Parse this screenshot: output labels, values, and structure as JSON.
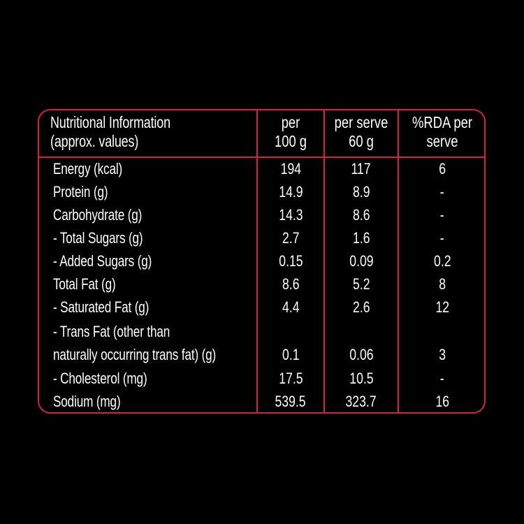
{
  "colors": {
    "background": "#000000",
    "border": "#d81b50",
    "text": "#ffffff"
  },
  "header": {
    "col1_line1": "Nutritional Information",
    "col1_line2": "(approx. values)",
    "col2_line1": "per",
    "col2_line2": "100 g",
    "col3_line1": "per serve",
    "col3_line2": "60 g",
    "col4_line1": "%RDA per",
    "col4_line2": "serve"
  },
  "rows": [
    {
      "label": "Energy (kcal)",
      "per100": "194",
      "perServe": "117",
      "rda": "6"
    },
    {
      "label": "Protein (g)",
      "per100": "14.9",
      "perServe": "8.9",
      "rda": "-"
    },
    {
      "label": "Carbohydrate (g)",
      "per100": "14.3",
      "perServe": "8.6",
      "rda": "-"
    },
    {
      "label": "- Total Sugars (g)",
      "per100": "2.7",
      "perServe": "1.6",
      "rda": "-"
    },
    {
      "label": "- Added Sugars (g)",
      "per100": "0.15",
      "perServe": "0.09",
      "rda": "0.2"
    },
    {
      "label": "Total Fat (g)",
      "per100": "8.6",
      "perServe": "5.2",
      "rda": "8"
    },
    {
      "label": " - Saturated Fat (g)",
      "per100": "4.4",
      "perServe": "2.6",
      "rda": "12"
    },
    {
      "label": "- Trans Fat (other than",
      "per100": "",
      "perServe": "",
      "rda": ""
    },
    {
      "label": "naturally occurring trans fat) (g)",
      "per100": "0.1",
      "perServe": "0.06",
      "rda": "3"
    },
    {
      "label": "- Cholesterol (mg)",
      "per100": "17.5",
      "perServe": "10.5",
      "rda": "-"
    },
    {
      "label": "Sodium (mg)",
      "per100": "539.5",
      "perServe": "323.7",
      "rda": "16"
    }
  ]
}
